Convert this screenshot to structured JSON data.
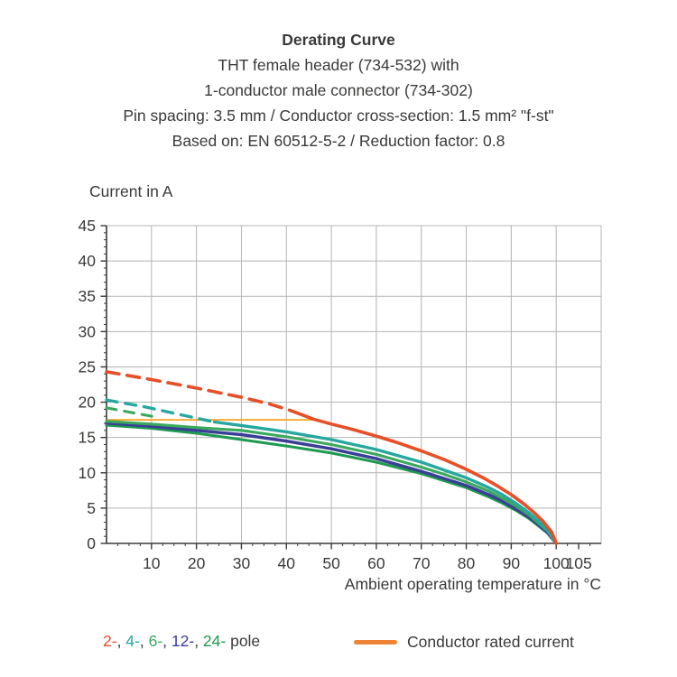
{
  "header": {
    "title": "Derating Curve",
    "subtitle_lines": [
      "THT female header (734-532) with",
      "1-conductor male connector (734-302)",
      "Pin spacing: 3.5 mm / Conductor cross-section: 1.5 mm² \"f-st\"",
      "Based on: EN 60512-5-2 / Reduction factor: 0.8"
    ]
  },
  "chart_data": {
    "type": "line",
    "title": "Derating Curve",
    "xlabel": "Ambient operating temperature in °C",
    "ylabel": "Current in A",
    "xlim": [
      0,
      110
    ],
    "ylim": [
      0,
      45
    ],
    "xticks": [
      10,
      20,
      30,
      40,
      50,
      60,
      70,
      80,
      90,
      100,
      105
    ],
    "yticks": [
      0,
      5,
      10,
      15,
      20,
      25,
      30,
      35,
      40,
      45
    ],
    "grid": true,
    "grid_step_x": 10,
    "grid_step_y": 5,
    "minor_tick_x": 2.5,
    "minor_tick_y": 1,
    "grid_color": "#b4b4b4",
    "axis_color": "#3a3a39",
    "rated_current": {
      "label": "Conductor rated current",
      "value_a": 17.5,
      "x_start": 0,
      "x_end": 46,
      "color": "#f7a41f"
    },
    "series": [
      {
        "name": "24-pole",
        "color": "#1e9a51",
        "width": 3.1,
        "solid_points": [
          [
            0,
            16.75
          ],
          [
            10,
            16.3
          ],
          [
            20,
            15.6
          ],
          [
            30,
            14.7
          ],
          [
            40,
            13.8
          ],
          [
            50,
            12.8
          ],
          [
            60,
            11.5
          ],
          [
            70,
            9.9
          ],
          [
            75,
            8.9
          ],
          [
            80,
            7.9
          ],
          [
            85,
            6.6
          ],
          [
            88,
            5.7
          ],
          [
            91,
            4.7
          ],
          [
            94,
            3.5
          ],
          [
            96,
            2.5
          ],
          [
            98,
            1.5
          ],
          [
            100,
            0
          ]
        ]
      },
      {
        "name": "12-pole",
        "color": "#3b3e97",
        "width": 3.5,
        "solid_points": [
          [
            0,
            17.05
          ],
          [
            10,
            16.6
          ],
          [
            20,
            16.0
          ],
          [
            30,
            15.4
          ],
          [
            40,
            14.5
          ],
          [
            50,
            13.4
          ],
          [
            60,
            12.0
          ],
          [
            70,
            10.2
          ],
          [
            75,
            9.2
          ],
          [
            80,
            8.2
          ],
          [
            85,
            6.9
          ],
          [
            88,
            6.0
          ],
          [
            91,
            4.9
          ],
          [
            94,
            3.7
          ],
          [
            96,
            2.7
          ],
          [
            98,
            1.6
          ],
          [
            100,
            0
          ]
        ]
      },
      {
        "name": "6-pole",
        "color": "#3aa95c",
        "width": 3.1,
        "dash": "11 9",
        "dashed_points": [
          [
            0,
            19.2
          ],
          [
            5,
            18.6
          ],
          [
            11,
            17.9
          ]
        ],
        "solid_points": [
          [
            0,
            17.3
          ],
          [
            10,
            16.9
          ],
          [
            20,
            16.4
          ],
          [
            30,
            16.0
          ],
          [
            40,
            15.1
          ],
          [
            50,
            14.0
          ],
          [
            60,
            12.6
          ],
          [
            70,
            10.8
          ],
          [
            75,
            9.8
          ],
          [
            80,
            8.7
          ],
          [
            85,
            7.4
          ],
          [
            88,
            6.4
          ],
          [
            91,
            5.3
          ],
          [
            94,
            4.0
          ],
          [
            96,
            2.9
          ],
          [
            98,
            1.8
          ],
          [
            100,
            0
          ]
        ]
      },
      {
        "name": "4-pole",
        "color": "#27a79f",
        "width": 3.4,
        "dash": "12 9",
        "dashed_points": [
          [
            0,
            20.3
          ],
          [
            8,
            19.4
          ],
          [
            16,
            18.3
          ],
          [
            24,
            17.2
          ]
        ],
        "solid_points": [
          [
            24,
            17.2
          ],
          [
            30,
            16.7
          ],
          [
            40,
            15.8
          ],
          [
            50,
            14.7
          ],
          [
            60,
            13.3
          ],
          [
            70,
            11.5
          ],
          [
            75,
            10.4
          ],
          [
            80,
            9.3
          ],
          [
            85,
            7.9
          ],
          [
            88,
            6.9
          ],
          [
            91,
            5.7
          ],
          [
            94,
            4.3
          ],
          [
            96,
            3.2
          ],
          [
            98,
            1.9
          ],
          [
            100,
            0
          ]
        ]
      },
      {
        "name": "2-pole",
        "color": "#e84e27",
        "width": 3.6,
        "dash": "14 9",
        "dashed_points": [
          [
            0,
            24.3
          ],
          [
            10,
            23.2
          ],
          [
            20,
            22.0
          ],
          [
            30,
            20.7
          ],
          [
            36,
            19.8
          ],
          [
            41,
            18.8
          ]
        ],
        "solid_points": [
          [
            41,
            18.8
          ],
          [
            46,
            17.6
          ],
          [
            50,
            16.9
          ],
          [
            55,
            16.1
          ],
          [
            60,
            15.2
          ],
          [
            65,
            14.2
          ],
          [
            70,
            13.1
          ],
          [
            75,
            11.9
          ],
          [
            80,
            10.5
          ],
          [
            84,
            9.2
          ],
          [
            87,
            8.1
          ],
          [
            90,
            6.9
          ],
          [
            93,
            5.5
          ],
          [
            95,
            4.4
          ],
          [
            97,
            3.2
          ],
          [
            99,
            1.6
          ],
          [
            100,
            0
          ]
        ]
      }
    ]
  },
  "legend": {
    "pole_items": [
      {
        "label": "2-",
        "color": "#e84e27"
      },
      {
        "label": "4-",
        "color": "#27a79f"
      },
      {
        "label": "6-",
        "color": "#3aa95c"
      },
      {
        "label": "12-",
        "color": "#3b3e97"
      },
      {
        "label": "24-",
        "color": "#1e9a51"
      }
    ],
    "pole_suffix": "pole",
    "rated_label": "Conductor rated current",
    "rated_swatch_color": "#ee8433"
  }
}
